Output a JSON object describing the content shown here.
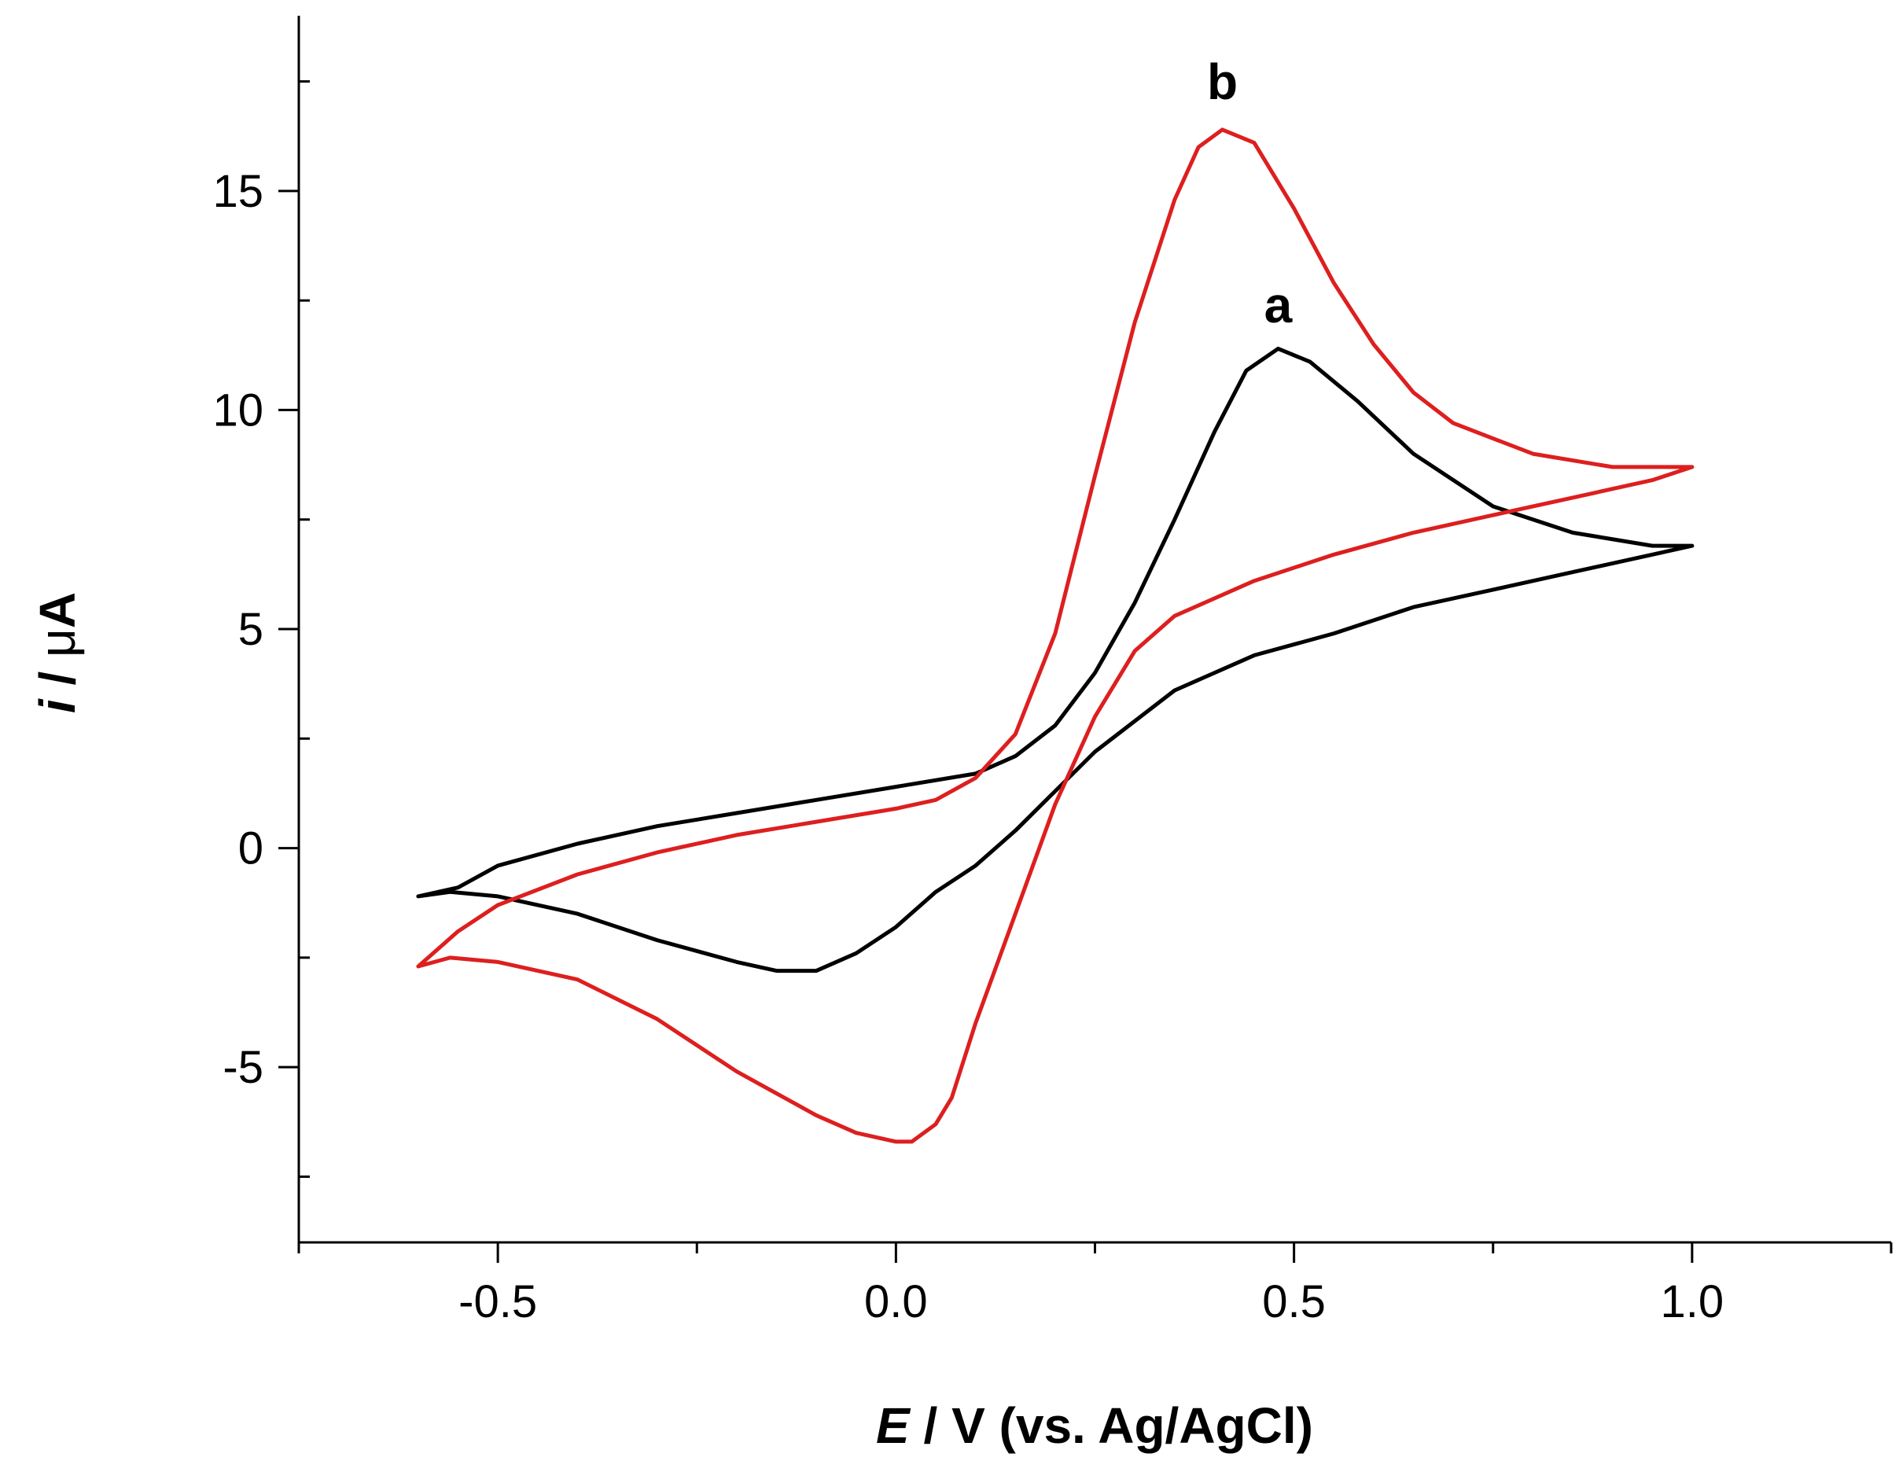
{
  "chart_data": {
    "type": "line",
    "title": "",
    "xlabel": {
      "italic": "E",
      "rest": " / V (vs. Ag/AgCl)"
    },
    "ylabel": {
      "italic": "i",
      "slash": " / ",
      "mu": "μ",
      "unit": "A"
    },
    "xlim": [
      -0.75,
      1.25
    ],
    "ylim": [
      -9,
      19
    ],
    "x_ticks": [
      {
        "value": -0.5,
        "label": "-0.5"
      },
      {
        "value": 0.0,
        "label": "0.0"
      },
      {
        "value": 0.5,
        "label": "0.5"
      },
      {
        "value": 1.0,
        "label": "1.0"
      }
    ],
    "y_ticks": [
      {
        "value": -5,
        "label": "-5"
      },
      {
        "value": 0,
        "label": "0"
      },
      {
        "value": 5,
        "label": "5"
      },
      {
        "value": 10,
        "label": "10"
      },
      {
        "value": 15,
        "label": "15"
      }
    ],
    "x_minor_step": 0.25,
    "y_minor_step": 2.5,
    "grid": false,
    "series": [
      {
        "name": "a",
        "color": "#000000",
        "label_point": {
          "x": 0.48,
          "y": 12.0
        },
        "x": [
          -0.6,
          -0.55,
          -0.5,
          -0.4,
          -0.3,
          -0.2,
          -0.1,
          0.0,
          0.1,
          0.15,
          0.2,
          0.25,
          0.3,
          0.35,
          0.4,
          0.44,
          0.48,
          0.52,
          0.58,
          0.65,
          0.75,
          0.85,
          0.95,
          1.0,
          0.95,
          0.85,
          0.75,
          0.65,
          0.55,
          0.45,
          0.35,
          0.25,
          0.2,
          0.15,
          0.1,
          0.05,
          0.0,
          -0.05,
          -0.1,
          -0.15,
          -0.2,
          -0.3,
          -0.4,
          -0.5,
          -0.56,
          -0.6
        ],
        "y": [
          -1.1,
          -0.9,
          -0.4,
          0.1,
          0.5,
          0.8,
          1.1,
          1.4,
          1.7,
          2.1,
          2.8,
          4.0,
          5.6,
          7.5,
          9.5,
          10.9,
          11.4,
          11.1,
          10.2,
          9.0,
          7.8,
          7.2,
          6.9,
          6.9,
          6.7,
          6.3,
          5.9,
          5.5,
          4.9,
          4.4,
          3.6,
          2.2,
          1.3,
          0.4,
          -0.4,
          -1.0,
          -1.8,
          -2.4,
          -2.8,
          -2.8,
          -2.6,
          -2.1,
          -1.5,
          -1.1,
          -1.0,
          -1.1
        ]
      },
      {
        "name": "b",
        "color": "#dd1f1f",
        "label_point": {
          "x": 0.41,
          "y": 17.1
        },
        "x": [
          -0.6,
          -0.55,
          -0.5,
          -0.4,
          -0.3,
          -0.2,
          -0.1,
          0.0,
          0.05,
          0.1,
          0.15,
          0.2,
          0.25,
          0.3,
          0.35,
          0.38,
          0.41,
          0.45,
          0.5,
          0.55,
          0.6,
          0.65,
          0.7,
          0.8,
          0.9,
          0.95,
          1.0,
          0.95,
          0.85,
          0.75,
          0.65,
          0.55,
          0.45,
          0.35,
          0.3,
          0.25,
          0.2,
          0.15,
          0.1,
          0.07,
          0.05,
          0.02,
          0.0,
          -0.05,
          -0.1,
          -0.2,
          -0.3,
          -0.4,
          -0.5,
          -0.56,
          -0.6
        ],
        "y": [
          -2.7,
          -1.9,
          -1.3,
          -0.6,
          -0.1,
          0.3,
          0.6,
          0.9,
          1.1,
          1.6,
          2.6,
          4.9,
          8.5,
          12.0,
          14.8,
          16.0,
          16.4,
          16.1,
          14.6,
          12.9,
          11.5,
          10.4,
          9.7,
          9.0,
          8.7,
          8.7,
          8.7,
          8.4,
          8.0,
          7.6,
          7.2,
          6.7,
          6.1,
          5.3,
          4.5,
          3.0,
          1.0,
          -1.5,
          -4.0,
          -5.7,
          -6.3,
          -6.7,
          -6.7,
          -6.5,
          -6.1,
          -5.1,
          -3.9,
          -3.0,
          -2.6,
          -2.5,
          -2.7
        ]
      }
    ]
  }
}
